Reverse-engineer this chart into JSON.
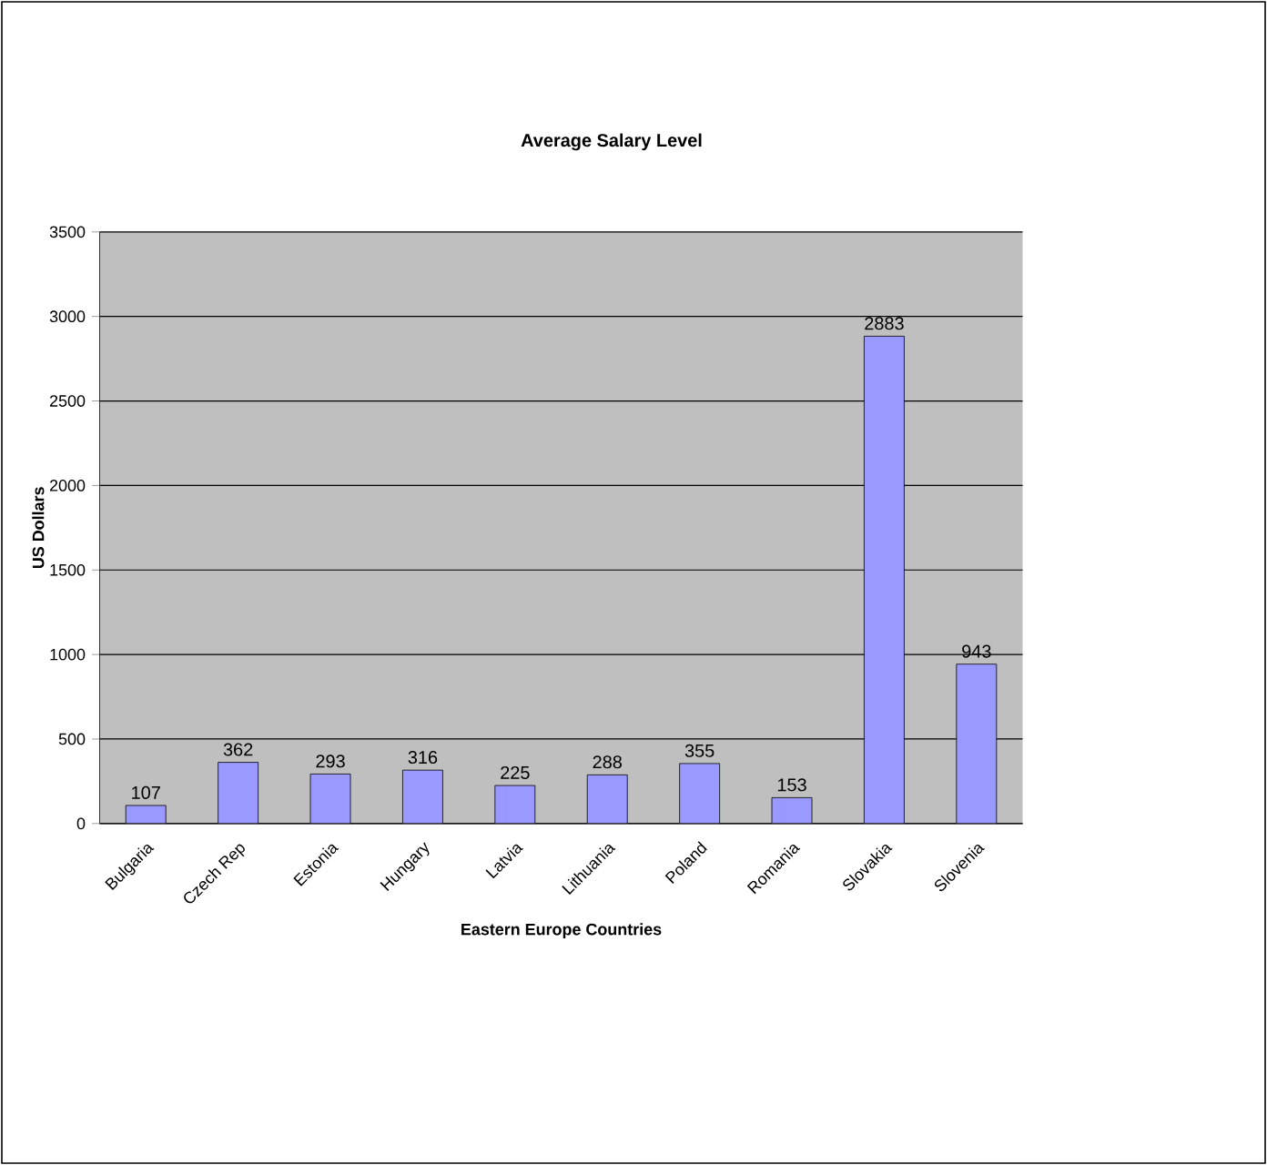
{
  "chart_data": {
    "type": "bar",
    "title": "Average Salary Level",
    "xlabel": "Eastern Europe Countries",
    "ylabel": "US Dollars",
    "categories": [
      "Bulgaria",
      "Czech Rep",
      "Estonia",
      "Hungary",
      "Latvia",
      "Lithuania",
      "Poland",
      "Romania",
      "Slovakia",
      "Slovenia"
    ],
    "values": [
      107,
      362,
      293,
      316,
      225,
      288,
      355,
      153,
      2883,
      943
    ],
    "color": "#9999ff",
    "ylim": [
      0,
      3500
    ],
    "yticks": [
      0,
      500,
      1000,
      1500,
      2000,
      2500,
      3000,
      3500
    ],
    "grid": "y",
    "data_labels": true
  }
}
